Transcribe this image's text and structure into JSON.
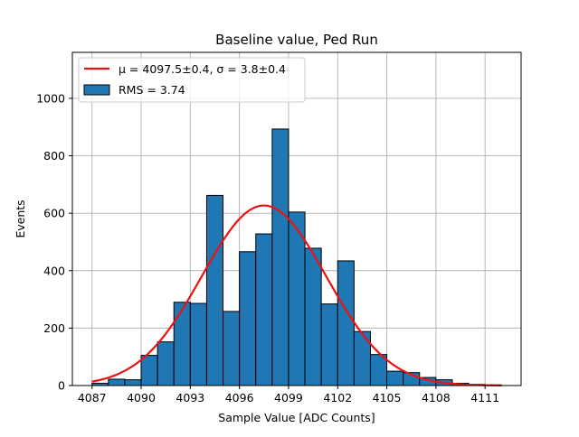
{
  "chart_data": {
    "type": "bar",
    "title": "Baseline value, Ped Run",
    "xlabel": "Sample Value [ADC Counts]",
    "ylabel": "Events",
    "xlim": [
      4085.8,
      4113.2
    ],
    "ylim": [
      0,
      1160
    ],
    "xticks": [
      4087,
      4090,
      4093,
      4096,
      4099,
      4102,
      4105,
      4108,
      4111
    ],
    "yticks": [
      0,
      200,
      400,
      600,
      800,
      1000
    ],
    "grid": true,
    "legend_position": "top-left",
    "bin_width": 1,
    "bin_starts": [
      4087,
      4088,
      4089,
      4090,
      4091,
      4092,
      4093,
      4094,
      4095,
      4096,
      4097,
      4098,
      4099,
      4100,
      4101,
      4102,
      4103,
      4104,
      4105,
      4106,
      4107,
      4108,
      4109,
      4110,
      4111
    ],
    "series": [
      {
        "name": "RMS = 3.74",
        "kind": "histogram",
        "color": "#1f77b4",
        "values": [
          8,
          22,
          20,
          105,
          152,
          290,
          286,
          662,
          258,
          466,
          528,
          893,
          604,
          478,
          284,
          434,
          188,
          108,
          50,
          45,
          28,
          20,
          8,
          4,
          2
        ]
      },
      {
        "name": "μ = 4097.5±0.4, σ = 3.8±0.4",
        "kind": "gaussian-fit",
        "color": "#ee1111",
        "mu": 4097.5,
        "sigma": 3.8,
        "amplitude": 627,
        "x_range": [
          4087,
          4112
        ]
      }
    ]
  }
}
